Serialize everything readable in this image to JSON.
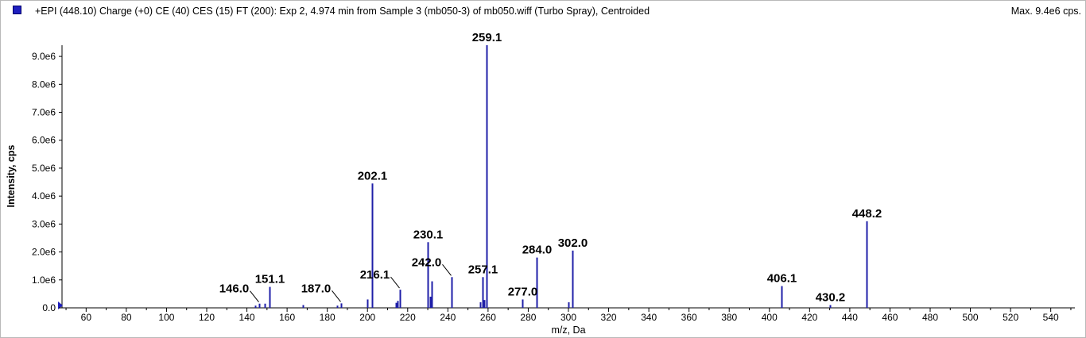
{
  "header": {
    "title": "+EPI (448.10) Charge (+0) CE (40) CES (15) FT (200): Exp 2, 4.974 min from Sample 3 (mb050-3) of mb050.wiff (Turbo Spray), Centroided",
    "max_label": "Max. 9.4e6 cps."
  },
  "colors": {
    "series": "#1f1fa8",
    "axis": "#000000",
    "marker": "#1f1fbf"
  },
  "chart_data": {
    "type": "bar",
    "title": "+EPI (448.10) Charge (+0) CE (40) CES (15) FT (200): Exp 2, 4.974 min from Sample 3 (mb050-3) of mb050.wiff (Turbo Spray), Centroided",
    "xlabel": "m/z, Da",
    "ylabel": "Intensity, cps",
    "xlim": [
      48,
      552
    ],
    "ylim": [
      0,
      9400000.0
    ],
    "grid": false,
    "x_ticks": [
      60,
      80,
      100,
      120,
      140,
      160,
      180,
      200,
      220,
      240,
      260,
      280,
      300,
      320,
      340,
      360,
      380,
      400,
      420,
      440,
      460,
      480,
      500,
      520,
      540
    ],
    "y_ticks": [
      {
        "value": 0,
        "label": "0.0"
      },
      {
        "value": 1000000,
        "label": "1.0e6"
      },
      {
        "value": 2000000,
        "label": "2.0e6"
      },
      {
        "value": 3000000,
        "label": "3.0e6"
      },
      {
        "value": 4000000,
        "label": "4.0e6"
      },
      {
        "value": 5000000,
        "label": "5.0e6"
      },
      {
        "value": 6000000,
        "label": "6.0e6"
      },
      {
        "value": 7000000,
        "label": "7.0e6"
      },
      {
        "value": 8000000,
        "label": "8.0e6"
      },
      {
        "value": 9000000,
        "label": "9.0e6"
      }
    ],
    "peaks": [
      {
        "mz": 144.0,
        "intensity": 80000
      },
      {
        "mz": 146.0,
        "intensity": 150000,
        "label": "146.0",
        "leader": true
      },
      {
        "mz": 149.0,
        "intensity": 150000
      },
      {
        "mz": 151.1,
        "intensity": 750000,
        "label": "151.1"
      },
      {
        "mz": 168.0,
        "intensity": 100000
      },
      {
        "mz": 185.0,
        "intensity": 80000
      },
      {
        "mz": 187.0,
        "intensity": 160000,
        "label": "187.0",
        "leader": true
      },
      {
        "mz": 200.0,
        "intensity": 300000
      },
      {
        "mz": 202.1,
        "intensity": 4450000,
        "label": "202.1"
      },
      {
        "mz": 214.0,
        "intensity": 180000
      },
      {
        "mz": 215.0,
        "intensity": 250000
      },
      {
        "mz": 216.1,
        "intensity": 650000,
        "label": "216.1",
        "leader": true
      },
      {
        "mz": 230.1,
        "intensity": 2350000,
        "label": "230.1"
      },
      {
        "mz": 231.0,
        "intensity": 400000
      },
      {
        "mz": 232.0,
        "intensity": 950000
      },
      {
        "mz": 242.0,
        "intensity": 1100000,
        "label": "242.0",
        "leader": true
      },
      {
        "mz": 256.0,
        "intensity": 200000
      },
      {
        "mz": 257.1,
        "intensity": 1100000,
        "label": "257.1"
      },
      {
        "mz": 258.0,
        "intensity": 280000
      },
      {
        "mz": 259.1,
        "intensity": 9400000,
        "label": "259.1"
      },
      {
        "mz": 277.0,
        "intensity": 300000,
        "label": "277.0"
      },
      {
        "mz": 284.0,
        "intensity": 1800000,
        "label": "284.0"
      },
      {
        "mz": 300.0,
        "intensity": 200000
      },
      {
        "mz": 302.0,
        "intensity": 2050000,
        "label": "302.0"
      },
      {
        "mz": 406.1,
        "intensity": 780000,
        "label": "406.1"
      },
      {
        "mz": 430.2,
        "intensity": 100000,
        "label": "430.2"
      },
      {
        "mz": 448.2,
        "intensity": 3100000,
        "label": "448.2"
      }
    ]
  }
}
